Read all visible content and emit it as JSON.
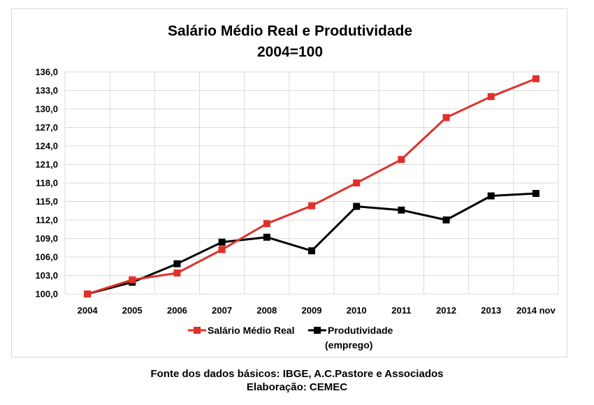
{
  "chart_data": {
    "type": "line",
    "title": "Salário Médio Real e Produtividade",
    "subtitle": "2004=100",
    "categories": [
      "2004",
      "2005",
      "2006",
      "2007",
      "2008",
      "2009",
      "2010",
      "2011",
      "2012",
      "2013",
      "2014 nov"
    ],
    "y_ticks": [
      "100,0",
      "103,0",
      "106,0",
      "109,0",
      "112,0",
      "115,0",
      "118,0",
      "121,0",
      "124,0",
      "127,0",
      "130,0",
      "133,0",
      "136,0"
    ],
    "ylim": [
      100,
      136
    ],
    "grid": true,
    "legend_position": "bottom",
    "series": [
      {
        "name": "Salário Médio Real",
        "color": "#e0302a",
        "values": [
          100.0,
          102.3,
          103.4,
          107.2,
          111.4,
          114.3,
          118.0,
          121.8,
          128.6,
          132.0,
          134.9
        ]
      },
      {
        "name": "Produtividade",
        "name_line2": "(emprego)",
        "color": "#000000",
        "values": [
          100.0,
          101.9,
          104.9,
          108.4,
          109.2,
          107.0,
          114.2,
          113.6,
          112.0,
          115.9,
          116.3
        ]
      }
    ]
  },
  "footer": {
    "source": "Fonte dos dados básicos: IBGE, A.C.Pastore e Associados",
    "credit": "Elaboração: CEMEC"
  }
}
